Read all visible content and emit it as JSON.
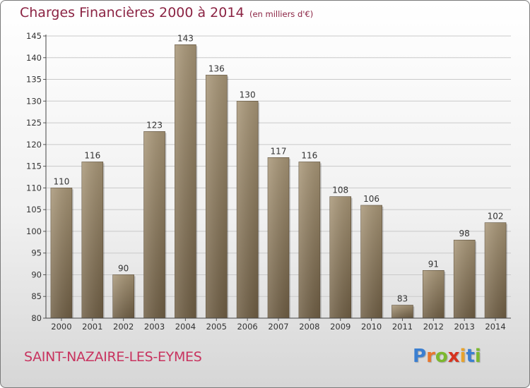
{
  "header": {
    "title": "Charges Financières 2000 à 2014",
    "unit": "(en milliers d'€)"
  },
  "footer": {
    "place": "SAINT-NAZAIRE-LES-EYMES",
    "logo_letters": [
      "P",
      "r",
      "o",
      "x",
      "i",
      "t",
      "i"
    ],
    "logo_colors": [
      "#3b7fd1",
      "#e8762d",
      "#7cb82f",
      "#d6331f",
      "#e8a32d",
      "#3b7fd1",
      "#7cb82f"
    ]
  },
  "chart_data": {
    "type": "bar",
    "title": "Charges Financières 2000 à 2014",
    "subtitle": "(en milliers d'€)",
    "categories": [
      "2000",
      "2001",
      "2002",
      "2003",
      "2004",
      "2005",
      "2006",
      "2007",
      "2008",
      "2009",
      "2010",
      "2011",
      "2012",
      "2013",
      "2014"
    ],
    "values": [
      110,
      116,
      90,
      123,
      143,
      136,
      130,
      117,
      116,
      108,
      106,
      83,
      91,
      98,
      102
    ],
    "ylim": [
      80,
      145
    ],
    "yticks": [
      80,
      85,
      90,
      95,
      100,
      105,
      110,
      115,
      120,
      125,
      130,
      135,
      140,
      145
    ],
    "grid": true,
    "bar_color": "#8c7a5e",
    "text_color": "#8b2343"
  }
}
